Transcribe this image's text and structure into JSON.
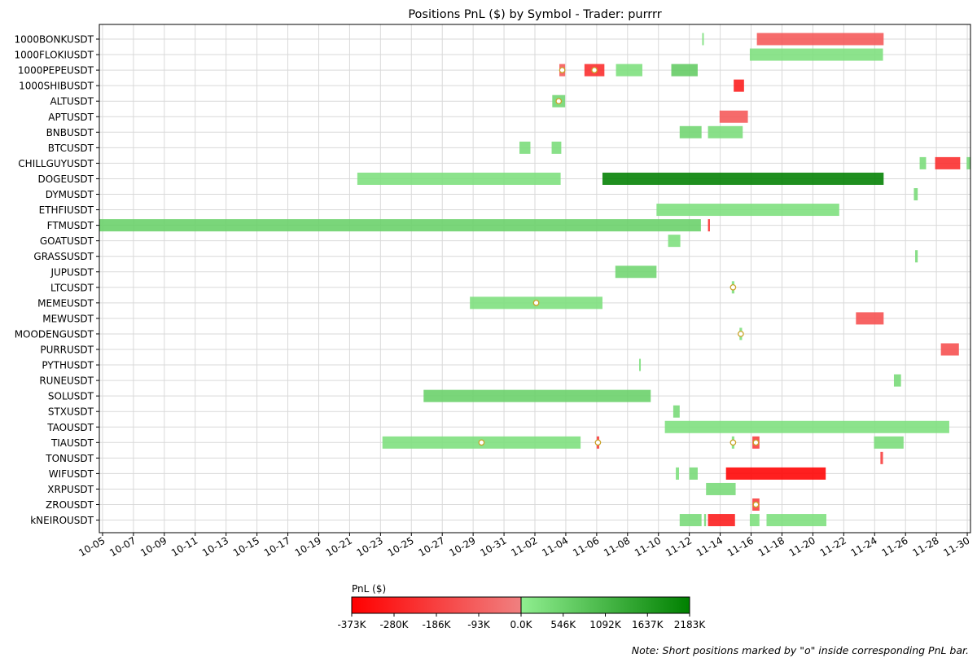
{
  "chart_data": {
    "type": "gantt",
    "title": "Positions PnL ($) by Symbol - Trader: purrrr",
    "note": "Note: Short positions marked by \"o\" inside corresponding PnL bar.",
    "x_ticks": [
      "10-05",
      "10-07",
      "10-09",
      "10-11",
      "10-13",
      "10-15",
      "10-17",
      "10-19",
      "10-21",
      "10-23",
      "10-25",
      "10-27",
      "10-29",
      "10-31",
      "11-02",
      "11-04",
      "11-06",
      "11-08",
      "11-10",
      "11-12",
      "11-14",
      "11-16",
      "11-18",
      "11-20",
      "11-22",
      "11-24",
      "11-26",
      "11-28",
      "11-30"
    ],
    "x_range": [
      "2024-10-04T19:00",
      "2024-11-30T05:00"
    ],
    "grid": true,
    "symbols": [
      "1000BONKUSDT",
      "1000FLOKIUSDT",
      "1000PEPEUSDT",
      "1000SHIBUSDT",
      "ALTUSDT",
      "APTUSDT",
      "BNBUSDT",
      "BTCUSDT",
      "CHILLGUYUSDT",
      "DOGEUSDT",
      "DYMUSDT",
      "ETHFIUSDT",
      "FTMUSDT",
      "GOATUSDT",
      "GRASSUSDT",
      "JUPUSDT",
      "LTCUSDT",
      "MEMEUSDT",
      "MEWUSDT",
      "MOODENGUSDT",
      "PURRUSDT",
      "PYTHUSDT",
      "RUNEUSDT",
      "SOLUSDT",
      "STXUSDT",
      "TAOUSDT",
      "TIAUSDT",
      "TONUSDT",
      "WIFUSDT",
      "XRPUSDT",
      "ZROUSDT",
      "kNEIROUSDT"
    ],
    "positions": [
      {
        "symbol": "1000BONKUSDT",
        "start": "2024-11-12T20:00",
        "end": "2024-11-12T22:00",
        "pnl": 300000,
        "short": false
      },
      {
        "symbol": "1000BONKUSDT",
        "start": "2024-11-16T09:00",
        "end": "2024-11-24T14:00",
        "pnl": -120000,
        "short": false
      },
      {
        "symbol": "1000FLOKIUSDT",
        "start": "2024-11-15T22:00",
        "end": "2024-11-24T13:00",
        "pnl": 300000,
        "short": false
      },
      {
        "symbol": "1000PEPEUSDT",
        "start": "2024-11-03T14:00",
        "end": "2024-11-03T23:00",
        "pnl": -120000,
        "short": true
      },
      {
        "symbol": "1000PEPEUSDT",
        "start": "2024-11-05T05:00",
        "end": "2024-11-06T12:00",
        "pnl": -250000,
        "short": true
      },
      {
        "symbol": "1000PEPEUSDT",
        "start": "2024-11-07T06:00",
        "end": "2024-11-08T23:00",
        "pnl": 300000,
        "short": false
      },
      {
        "symbol": "1000PEPEUSDT",
        "start": "2024-11-10T20:00",
        "end": "2024-11-12T13:00",
        "pnl": 700000,
        "short": false
      },
      {
        "symbol": "1000SHIBUSDT",
        "start": "2024-11-14T21:00",
        "end": "2024-11-15T13:00",
        "pnl": -300000,
        "short": false
      },
      {
        "symbol": "ALTUSDT",
        "start": "2024-11-03T03:00",
        "end": "2024-11-03T23:00",
        "pnl": 500000,
        "short": true
      },
      {
        "symbol": "APTUSDT",
        "start": "2024-11-13T23:00",
        "end": "2024-11-15T19:00",
        "pnl": -120000,
        "short": false
      },
      {
        "symbol": "BNBUSDT",
        "start": "2024-11-11T09:00",
        "end": "2024-11-12T19:00",
        "pnl": 500000,
        "short": false
      },
      {
        "symbol": "BNBUSDT",
        "start": "2024-11-13T05:00",
        "end": "2024-11-15T11:00",
        "pnl": 350000,
        "short": false
      },
      {
        "symbol": "BTCUSDT",
        "start": "2024-11-01T00:00",
        "end": "2024-11-01T17:00",
        "pnl": 350000,
        "short": false
      },
      {
        "symbol": "BTCUSDT",
        "start": "2024-11-03T02:00",
        "end": "2024-11-03T17:00",
        "pnl": 350000,
        "short": false
      },
      {
        "symbol": "CHILLGUYUSDT",
        "start": "2024-11-26T22:00",
        "end": "2024-11-27T08:00",
        "pnl": 350000,
        "short": false
      },
      {
        "symbol": "CHILLGUYUSDT",
        "start": "2024-11-27T22:00",
        "end": "2024-11-29T13:00",
        "pnl": -250000,
        "short": false
      },
      {
        "symbol": "CHILLGUYUSDT",
        "start": "2024-11-29T23:00",
        "end": "2024-11-30T05:00",
        "pnl": 400000,
        "short": false
      },
      {
        "symbol": "DOGEUSDT",
        "start": "2024-10-21T12:00",
        "end": "2024-11-03T16:00",
        "pnl": 300000,
        "short": false
      },
      {
        "symbol": "DOGEUSDT",
        "start": "2024-11-06T09:00",
        "end": "2024-11-24T14:00",
        "pnl": 2183000,
        "short": false
      },
      {
        "symbol": "DYMUSDT",
        "start": "2024-11-26T13:00",
        "end": "2024-11-26T19:00",
        "pnl": 400000,
        "short": false
      },
      {
        "symbol": "ETHFIUSDT",
        "start": "2024-11-09T21:00",
        "end": "2024-11-21T17:00",
        "pnl": 300000,
        "short": false
      },
      {
        "symbol": "FTMUSDT",
        "start": "2024-10-04T19:00",
        "end": "2024-11-12T18:00",
        "pnl": 600000,
        "short": false
      },
      {
        "symbol": "FTMUSDT",
        "start": "2024-11-13T05:00",
        "end": "2024-11-13T08:00",
        "pnl": -250000,
        "short": false
      },
      {
        "symbol": "GOATUSDT",
        "start": "2024-11-10T15:00",
        "end": "2024-11-11T10:00",
        "pnl": 300000,
        "short": false
      },
      {
        "symbol": "GRASSUSDT",
        "start": "2024-11-26T15:00",
        "end": "2024-11-26T19:00",
        "pnl": 400000,
        "short": false
      },
      {
        "symbol": "JUPUSDT",
        "start": "2024-11-07T05:00",
        "end": "2024-11-09T21:00",
        "pnl": 500000,
        "short": false
      },
      {
        "symbol": "LTCUSDT",
        "start": "2024-11-14T18:00",
        "end": "2024-11-14T22:00",
        "pnl": 300000,
        "short": true
      },
      {
        "symbol": "MEMEUSDT",
        "start": "2024-10-28T19:00",
        "end": "2024-11-06T09:00",
        "pnl": 300000,
        "short": true
      },
      {
        "symbol": "MEWUSDT",
        "start": "2024-11-22T19:00",
        "end": "2024-11-24T14:00",
        "pnl": -150000,
        "short": false
      },
      {
        "symbol": "MOODENGUSDT",
        "start": "2024-11-15T06:00",
        "end": "2024-11-15T10:00",
        "pnl": 300000,
        "short": true
      },
      {
        "symbol": "PURRUSDT",
        "start": "2024-11-28T07:00",
        "end": "2024-11-29T11:00",
        "pnl": -150000,
        "short": false
      },
      {
        "symbol": "PYTHUSDT",
        "start": "2024-11-08T18:00",
        "end": "2024-11-08T20:00",
        "pnl": 300000,
        "short": false
      },
      {
        "symbol": "RUNEUSDT",
        "start": "2024-11-25T06:00",
        "end": "2024-11-25T17:00",
        "pnl": 400000,
        "short": false
      },
      {
        "symbol": "SOLUSDT",
        "start": "2024-10-25T19:00",
        "end": "2024-11-09T12:00",
        "pnl": 600000,
        "short": false
      },
      {
        "symbol": "STXUSDT",
        "start": "2024-11-10T23:00",
        "end": "2024-11-11T09:00",
        "pnl": 400000,
        "short": false
      },
      {
        "symbol": "TAOUSDT",
        "start": "2024-11-10T10:00",
        "end": "2024-11-28T20:00",
        "pnl": 300000,
        "short": false
      },
      {
        "symbol": "TIAUSDT",
        "start": "2024-10-23T03:00",
        "end": "2024-11-04T23:00",
        "pnl": 300000,
        "short": true
      },
      {
        "symbol": "TIAUSDT",
        "start": "2024-11-06T00:00",
        "end": "2024-11-06T04:00",
        "pnl": -200000,
        "short": true
      },
      {
        "symbol": "TIAUSDT",
        "start": "2024-11-14T18:00",
        "end": "2024-11-14T22:00",
        "pnl": 300000,
        "short": true
      },
      {
        "symbol": "TIAUSDT",
        "start": "2024-11-16T02:00",
        "end": "2024-11-16T13:00",
        "pnl": -200000,
        "short": true
      },
      {
        "symbol": "TIAUSDT",
        "start": "2024-11-23T23:00",
        "end": "2024-11-25T21:00",
        "pnl": 350000,
        "short": false
      },
      {
        "symbol": "TONUSDT",
        "start": "2024-11-24T09:00",
        "end": "2024-11-24T13:00",
        "pnl": -200000,
        "short": false
      },
      {
        "symbol": "WIFUSDT",
        "start": "2024-11-11T03:00",
        "end": "2024-11-11T08:00",
        "pnl": 300000,
        "short": false
      },
      {
        "symbol": "WIFUSDT",
        "start": "2024-11-12T00:00",
        "end": "2024-11-12T13:00",
        "pnl": 400000,
        "short": false
      },
      {
        "symbol": "WIFUSDT",
        "start": "2024-11-14T09:00",
        "end": "2024-11-20T20:00",
        "pnl": -373000,
        "short": false
      },
      {
        "symbol": "XRPUSDT",
        "start": "2024-11-13T02:00",
        "end": "2024-11-15T00:00",
        "pnl": 400000,
        "short": false
      },
      {
        "symbol": "ZROUSDT",
        "start": "2024-11-16T02:00",
        "end": "2024-11-16T13:00",
        "pnl": -200000,
        "short": true
      },
      {
        "symbol": "kNEIROUSDT",
        "start": "2024-11-11T09:00",
        "end": "2024-11-12T19:00",
        "pnl": 400000,
        "short": false
      },
      {
        "symbol": "kNEIROUSDT",
        "start": "2024-11-12T23:00",
        "end": "2024-11-13T02:00",
        "pnl": 400000,
        "short": false
      },
      {
        "symbol": "kNEIROUSDT",
        "start": "2024-11-13T05:00",
        "end": "2024-11-14T23:00",
        "pnl": -300000,
        "short": false
      },
      {
        "symbol": "kNEIROUSDT",
        "start": "2024-11-15T22:00",
        "end": "2024-11-16T13:00",
        "pnl": 300000,
        "short": false
      },
      {
        "symbol": "kNEIROUSDT",
        "start": "2024-11-17T00:00",
        "end": "2024-11-20T21:00",
        "pnl": 300000,
        "short": false
      }
    ],
    "colorbar": {
      "label": "PnL ($)",
      "neg_ticks": [
        "-373K",
        "-280K",
        "-186K",
        "-93K",
        "0.0K"
      ],
      "pos_ticks": [
        "546K",
        "1092K",
        "1637K",
        "2183K"
      ],
      "neg_range": [
        -373000,
        0
      ],
      "pos_range": [
        0,
        2183000
      ],
      "neg_colors": [
        "#ff0000",
        "#f08080"
      ],
      "pos_colors": [
        "#90ee90",
        "#008000"
      ]
    }
  }
}
